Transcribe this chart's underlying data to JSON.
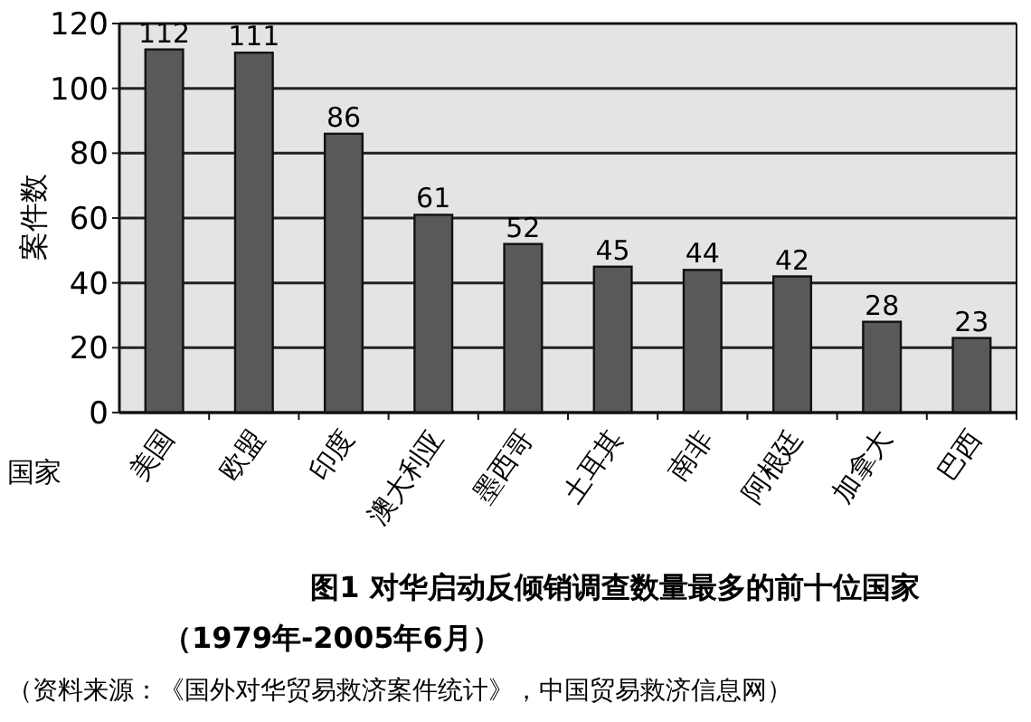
{
  "chart_data": {
    "type": "bar",
    "title": "图1 对华启动反倾销调查数量最多的前十位国家",
    "subtitle": "（1979年-2005年6月）",
    "xlabel": "国家",
    "ylabel": "案件数",
    "categories": [
      "美国",
      "欧盟",
      "印度",
      "澳大利亚",
      "墨西哥",
      "土耳其",
      "南非",
      "阿根廷",
      "加拿大",
      "巴西"
    ],
    "values": [
      112,
      111,
      86,
      61,
      52,
      45,
      44,
      42,
      28,
      23
    ],
    "color": "#595959",
    "ylim": [
      0,
      120
    ],
    "yticks": [
      0,
      20,
      40,
      60,
      80,
      100,
      120
    ],
    "grid": "y",
    "data_labels": true,
    "annotations": [
      "（资料来源：《国外对华贸易救济案件统计》，中国贸易救济信息网）"
    ]
  }
}
